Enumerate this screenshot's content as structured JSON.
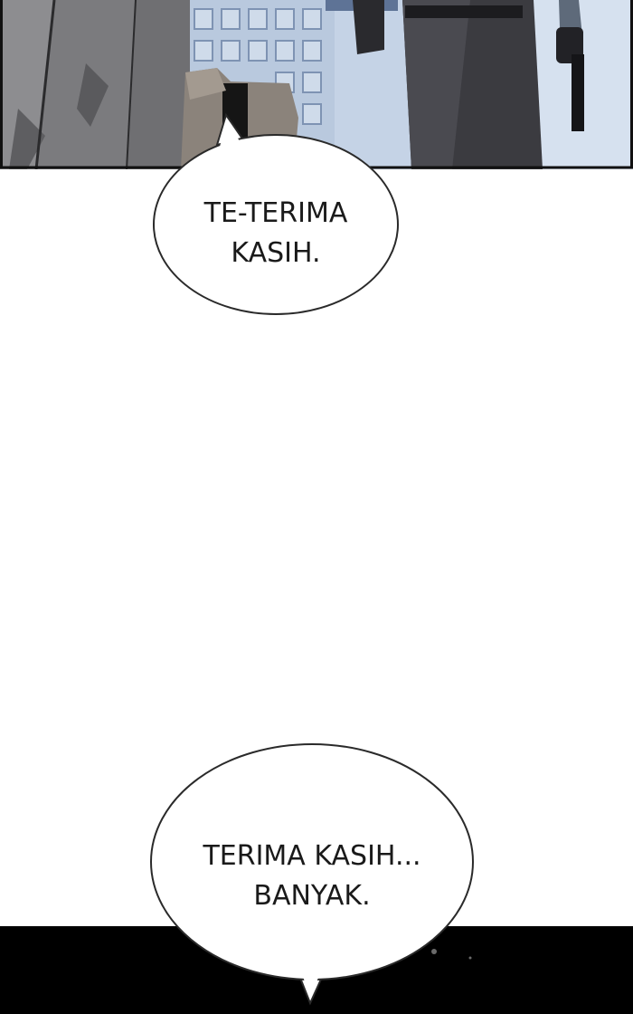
{
  "bubbles": {
    "first": {
      "lines": [
        "TE-TERIMA",
        "KASIH."
      ]
    },
    "second": {
      "lines": [
        "TERIMA KASIH...",
        "BANYAK."
      ]
    }
  },
  "colors": {
    "page_background": "#ffffff",
    "panel_border": "#111111",
    "bubble_fill": "#ffffff",
    "bubble_outline": "#2a2a2a",
    "text": "#1a1a1a",
    "bottom_panel": "#000000",
    "window_blue": "#9fb3cf"
  }
}
